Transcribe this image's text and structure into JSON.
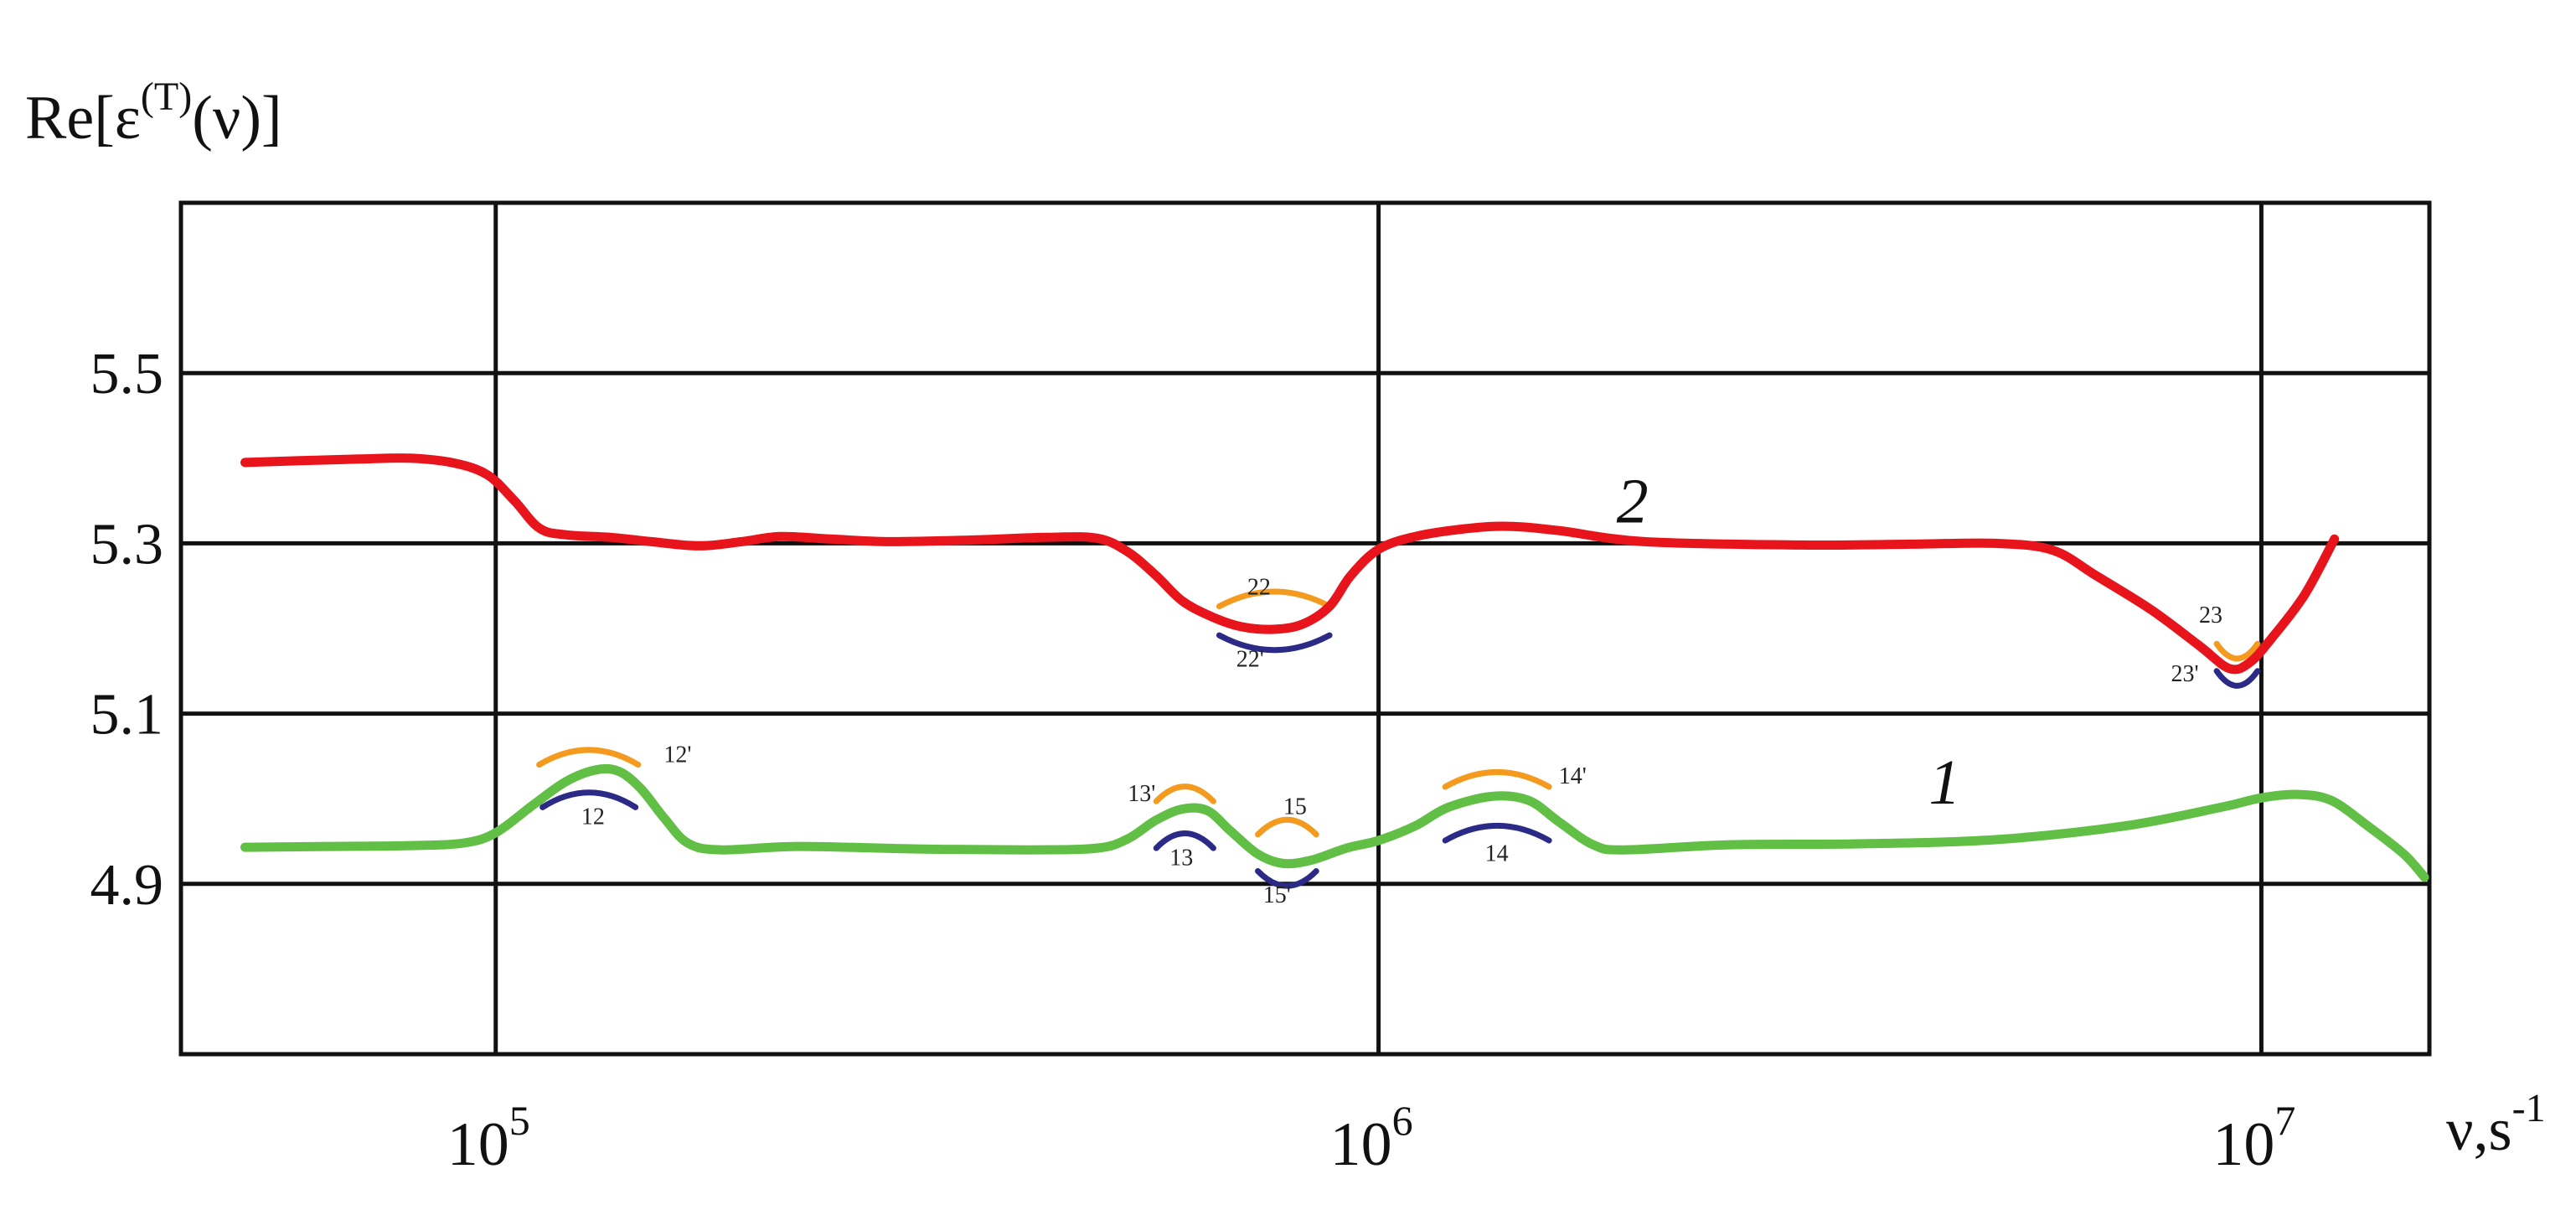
{
  "chart_data": {
    "type": "line",
    "ylabel": {
      "base": "Re[ε",
      "sup": "(T)",
      "tail": "(ν)]"
    },
    "xlabel": {
      "base": "ν,s",
      "sup": "-1"
    },
    "x_scale": "log",
    "xlim": [
      44000,
      15500000
    ],
    "ylim": [
      4.7,
      5.7
    ],
    "grid": true,
    "y_ticks": [
      {
        "value": 4.9,
        "label": "4.9"
      },
      {
        "value": 5.1,
        "label": "5.1"
      },
      {
        "value": 5.3,
        "label": "5.3"
      },
      {
        "value": 5.5,
        "label": "5.5"
      }
    ],
    "x_ticks": [
      {
        "value": 100000,
        "base": "10",
        "exp": "5"
      },
      {
        "value": 1000000,
        "base": "10",
        "exp": "6"
      },
      {
        "value": 10000000,
        "base": "10",
        "exp": "7"
      }
    ],
    "series": [
      {
        "name": "2",
        "color": "#e8141b",
        "points": [
          [
            52000,
            5.395
          ],
          [
            60000,
            5.397
          ],
          [
            70000,
            5.399
          ],
          [
            80000,
            5.4
          ],
          [
            90000,
            5.394
          ],
          [
            98000,
            5.38
          ],
          [
            105000,
            5.35
          ],
          [
            112000,
            5.318
          ],
          [
            120000,
            5.31
          ],
          [
            135000,
            5.307
          ],
          [
            150000,
            5.302
          ],
          [
            170000,
            5.297
          ],
          [
            190000,
            5.302
          ],
          [
            210000,
            5.308
          ],
          [
            240000,
            5.305
          ],
          [
            280000,
            5.302
          ],
          [
            350000,
            5.304
          ],
          [
            420000,
            5.307
          ],
          [
            480000,
            5.306
          ],
          [
            520000,
            5.29
          ],
          [
            560000,
            5.262
          ],
          [
            600000,
            5.232
          ],
          [
            650000,
            5.213
          ],
          [
            700000,
            5.202
          ],
          [
            760000,
            5.199
          ],
          [
            820000,
            5.205
          ],
          [
            880000,
            5.226
          ],
          [
            930000,
            5.262
          ],
          [
            1000000,
            5.293
          ],
          [
            1100000,
            5.308
          ],
          [
            1250000,
            5.317
          ],
          [
            1400000,
            5.32
          ],
          [
            1600000,
            5.315
          ],
          [
            2000000,
            5.302
          ],
          [
            3000000,
            5.298
          ],
          [
            4000000,
            5.299
          ],
          [
            5000000,
            5.3
          ],
          [
            5800000,
            5.292
          ],
          [
            6500000,
            5.262
          ],
          [
            7500000,
            5.222
          ],
          [
            8500000,
            5.18
          ],
          [
            9200000,
            5.153
          ],
          [
            9700000,
            5.16
          ],
          [
            10300000,
            5.19
          ],
          [
            11200000,
            5.24
          ],
          [
            12100000,
            5.305
          ]
        ]
      },
      {
        "name": "1",
        "color": "#62bf46",
        "points": [
          [
            52000,
            4.943
          ],
          [
            65000,
            4.944
          ],
          [
            80000,
            4.945
          ],
          [
            92000,
            4.948
          ],
          [
            100000,
            4.96
          ],
          [
            110000,
            4.992
          ],
          [
            120000,
            5.02
          ],
          [
            130000,
            5.034
          ],
          [
            138000,
            5.032
          ],
          [
            146000,
            5.012
          ],
          [
            155000,
            4.978
          ],
          [
            165000,
            4.948
          ],
          [
            180000,
            4.94
          ],
          [
            220000,
            4.944
          ],
          [
            300000,
            4.941
          ],
          [
            400000,
            4.94
          ],
          [
            480000,
            4.942
          ],
          [
            520000,
            4.953
          ],
          [
            560000,
            4.975
          ],
          [
            600000,
            4.988
          ],
          [
            640000,
            4.986
          ],
          [
            680000,
            4.962
          ],
          [
            730000,
            4.935
          ],
          [
            780000,
            4.924
          ],
          [
            840000,
            4.928
          ],
          [
            920000,
            4.942
          ],
          [
            1000000,
            4.951
          ],
          [
            1100000,
            4.968
          ],
          [
            1200000,
            4.99
          ],
          [
            1350000,
            5.003
          ],
          [
            1480000,
            4.998
          ],
          [
            1600000,
            4.973
          ],
          [
            1750000,
            4.946
          ],
          [
            1900000,
            4.94
          ],
          [
            2500000,
            4.946
          ],
          [
            3500000,
            4.947
          ],
          [
            5000000,
            4.952
          ],
          [
            7000000,
            4.968
          ],
          [
            9000000,
            4.99
          ],
          [
            10000000,
            5.001
          ],
          [
            11000000,
            5.005
          ],
          [
            12000000,
            4.998
          ],
          [
            13200000,
            4.968
          ],
          [
            14500000,
            4.935
          ],
          [
            15300000,
            4.908
          ]
        ]
      }
    ],
    "series_labels": [
      {
        "text": "2",
        "x": 1860000,
        "y": 5.35
      },
      {
        "text": "1",
        "x": 4200000,
        "y": 5.02
      }
    ],
    "annotations": [
      {
        "label": "12'",
        "color": "#f39a1f",
        "arc": [
          112000,
          145000,
          5.04
        ],
        "dir": "up",
        "text_at": [
          155000,
          5.043
        ]
      },
      {
        "label": "12",
        "color": "#2b2a86",
        "arc": [
          113000,
          144000,
          4.99
        ],
        "dir": "up",
        "text_at": [
          125000,
          4.97
        ]
      },
      {
        "label": "13'",
        "color": "#f39a1f",
        "arc": [
          560000,
          650000,
          4.997
        ],
        "dir": "up",
        "text_at": [
          520000,
          4.997
        ]
      },
      {
        "label": "13",
        "color": "#2b2a86",
        "arc": [
          560000,
          650000,
          4.942
        ],
        "dir": "up",
        "text_at": [
          580000,
          4.922
        ]
      },
      {
        "label": "15",
        "color": "#f39a1f",
        "arc": [
          730000,
          850000,
          4.958
        ],
        "dir": "up",
        "text_at": [
          780000,
          4.982
        ]
      },
      {
        "label": "15'",
        "color": "#2b2a86",
        "arc": [
          730000,
          850000,
          4.915
        ],
        "dir": "down",
        "text_at": [
          740000,
          4.878
        ]
      },
      {
        "label": "14'",
        "color": "#f39a1f",
        "arc": [
          1190000,
          1560000,
          5.014
        ],
        "dir": "up",
        "text_at": [
          1600000,
          5.018
        ]
      },
      {
        "label": "14",
        "color": "#2b2a86",
        "arc": [
          1190000,
          1560000,
          4.951
        ],
        "dir": "up",
        "text_at": [
          1320000,
          4.927
        ]
      },
      {
        "label": "22",
        "color": "#f39a1f",
        "arc": [
          660000,
          880000,
          5.226
        ],
        "dir": "up",
        "text_at": [
          710000,
          5.24
        ]
      },
      {
        "label": "22'",
        "color": "#2b2a86",
        "arc": [
          660000,
          880000,
          5.192
        ],
        "dir": "down",
        "text_at": [
          690000,
          5.155
        ]
      },
      {
        "label": "23",
        "color": "#f39a1f",
        "arc": [
          8900000,
          9900000,
          5.182
        ],
        "dir": "down",
        "text_at": [
          8500000,
          5.207
        ]
      },
      {
        "label": "23'",
        "color": "#2b2a86",
        "arc": [
          8900000,
          9900000,
          5.15
        ],
        "dir": "down",
        "text_at": [
          7900000,
          5.138
        ]
      }
    ]
  }
}
